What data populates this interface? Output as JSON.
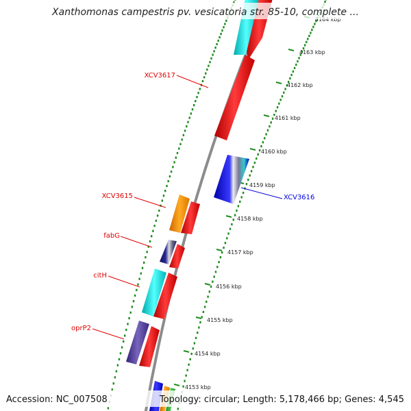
{
  "title": "Xanthomonas campestris pv. vesicatoria str. 85-10, complete ...",
  "footer": {
    "accession": "Accession: NC_007508",
    "stats": "Topology: circular; Length: 5,178,466 bp; Genes: 4,545"
  },
  "colors": {
    "backbone": "#8c8c8c",
    "ticks": "#1e8c1e",
    "label_red": "#e00000",
    "label_blue": "#0000dd"
  },
  "scale_labels": [
    "4164 kbp",
    "4163 kbp",
    "4162 kbp",
    "4161 kbp",
    "4160 kbp",
    "4159 kbp",
    "4158 kbp",
    "4157 kbp",
    "4156 kbp",
    "4155 kbp",
    "4154 kbp",
    "4153 kbp"
  ],
  "gene_labels": [
    {
      "name": "XCV3617",
      "color": "red"
    },
    {
      "name": "XCV3616",
      "color": "blue"
    },
    {
      "name": "XCV3615",
      "color": "red"
    },
    {
      "name": "fabG",
      "color": "red"
    },
    {
      "name": "citH",
      "color": "red"
    },
    {
      "name": "oprP2",
      "color": "red"
    }
  ],
  "features": [
    {
      "name": "feature-red-top",
      "color": "#ee1111"
    },
    {
      "name": "feature-cyan-top",
      "color": "#22dddd"
    },
    {
      "name": "feature-red-xcv3617",
      "color": "#ee1111"
    },
    {
      "name": "feature-blue-xcv3616",
      "color": "#2222dd"
    },
    {
      "name": "feature-orange-xcv3615",
      "color": "#ff8c00"
    },
    {
      "name": "feature-red-4158",
      "color": "#ee1111"
    },
    {
      "name": "feature-navy-fabg",
      "color": "#222288"
    },
    {
      "name": "feature-red-4157",
      "color": "#ee1111"
    },
    {
      "name": "feature-cyan-cith",
      "color": "#22dddd"
    },
    {
      "name": "feature-red-4156",
      "color": "#ee1111"
    },
    {
      "name": "feature-purple-oprp2",
      "color": "#554499"
    },
    {
      "name": "feature-red-4154",
      "color": "#ee1111"
    },
    {
      "name": "feature-blue-bottom",
      "color": "#2222dd"
    },
    {
      "name": "feature-orange-bottom",
      "color": "#ff8c00"
    },
    {
      "name": "feature-green-bottom",
      "color": "#33aa33"
    }
  ]
}
